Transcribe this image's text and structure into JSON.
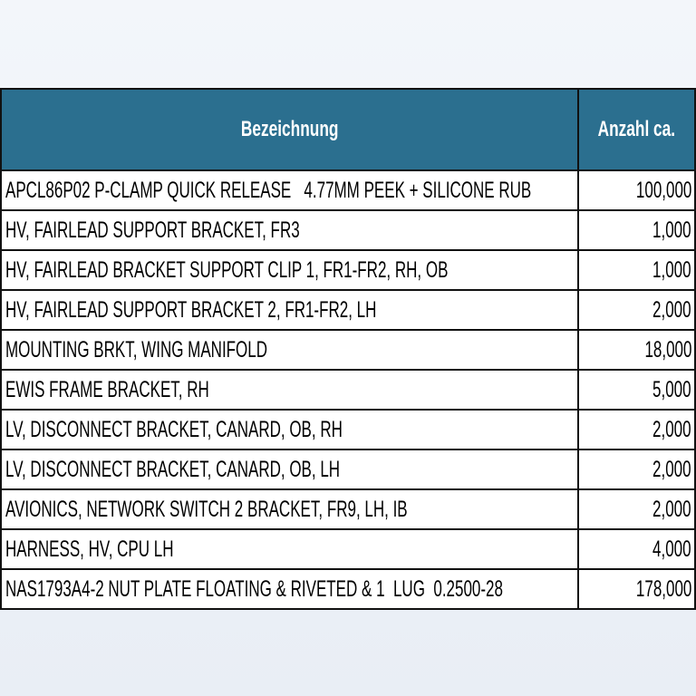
{
  "table": {
    "header": [
      "Bezeichnung",
      "Anzahl ca."
    ],
    "rows": [
      [
        "APCL86P02 P-CLAMP QUICK RELEASE   4.77MM PEEK + SILICONE RUB",
        "100,000"
      ],
      [
        "HV, FAIRLEAD SUPPORT BRACKET, FR3",
        "1,000"
      ],
      [
        "HV, FAIRLEAD BRACKET SUPPORT CLIP 1, FR1-FR2, RH, OB",
        "1,000"
      ],
      [
        "HV, FAIRLEAD SUPPORT BRACKET 2, FR1-FR2, LH",
        "2,000"
      ],
      [
        "MOUNTING BRKT, WING MANIFOLD",
        "18,000"
      ],
      [
        "EWIS FRAME BRACKET, RH",
        "5,000"
      ],
      [
        "LV, DISCONNECT BRACKET, CANARD, OB, RH",
        "2,000"
      ],
      [
        "LV, DISCONNECT BRACKET, CANARD, OB, LH",
        "2,000"
      ],
      [
        "AVIONICS, NETWORK SWITCH 2 BRACKET, FR9, LH, IB",
        "2,000"
      ],
      [
        "HARNESS, HV, CPU LH",
        "4,000"
      ],
      [
        "NAS1793A4-2 NUT PLATE FLOATING & RIVETED & 1  LUG  0.2500-28",
        "178,000"
      ]
    ]
  }
}
